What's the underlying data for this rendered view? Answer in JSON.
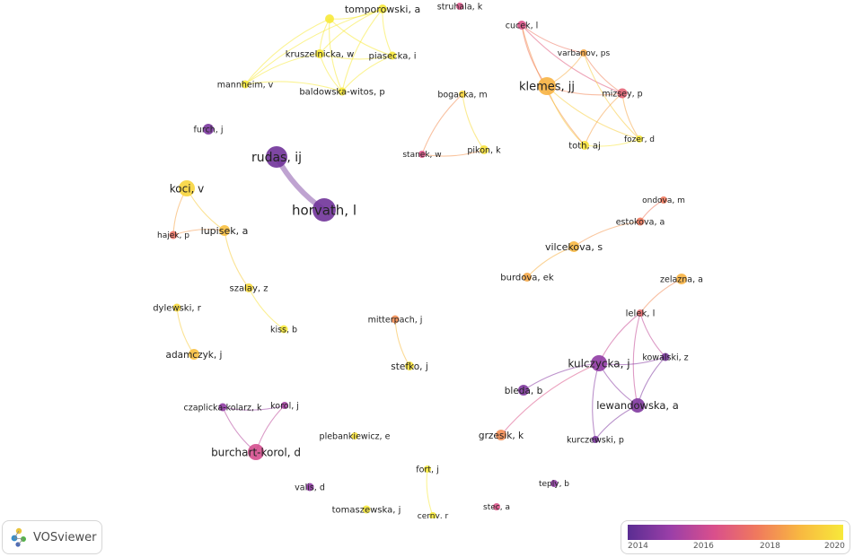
{
  "brand": {
    "name": "VOSviewer",
    "icon": "vosviewer-logo-icon"
  },
  "legend": {
    "ticks": [
      "2014",
      "2016",
      "2018",
      "2020"
    ],
    "colors": [
      "#5a2d92",
      "#9b3fa8",
      "#d94f8c",
      "#f0795d",
      "#f8b841",
      "#f7e93a"
    ]
  },
  "nodes": [
    {
      "id": "tomporowski",
      "label": "tomporowski, a",
      "year": 2020.0
    },
    {
      "id": "struhala",
      "label": "struhala, k",
      "year": 2016.5
    },
    {
      "id": "cucek",
      "label": "cucek, l",
      "year": 2016.5
    },
    {
      "id": "varbanov",
      "label": "varbanov, ps",
      "year": 2018.5
    },
    {
      "id": "kruszelnicka",
      "label": "kruszelnicka, w",
      "year": 2020.0
    },
    {
      "id": "piasecka",
      "label": "piasecka, i",
      "year": 2020.0
    },
    {
      "id": "klemes",
      "label": "klemes, jj",
      "year": 2018.7
    },
    {
      "id": "mannheim",
      "label": "mannheim, v",
      "year": 2020.0
    },
    {
      "id": "baldowska",
      "label": "baldowska-witos, p",
      "year": 2020.0
    },
    {
      "id": "bogacka",
      "label": "bogacka, m",
      "year": 2019.5
    },
    {
      "id": "mizsey",
      "label": "mizsey, p",
      "year": 2017.0
    },
    {
      "id": "furch",
      "label": "furch, j",
      "year": 2014.6
    },
    {
      "id": "toth",
      "label": "toth, aj",
      "year": 2019.8
    },
    {
      "id": "fozer",
      "label": "fozer, d",
      "year": 2020.0
    },
    {
      "id": "stanek",
      "label": "stanek, w",
      "year": 2016.5
    },
    {
      "id": "pikon",
      "label": "pikon, k",
      "year": 2019.8
    },
    {
      "id": "rudas",
      "label": "rudas, ij",
      "year": 2014.4
    },
    {
      "id": "koci",
      "label": "koci, v",
      "year": 2019.5
    },
    {
      "id": "horvath",
      "label": "horvath, l",
      "year": 2014.4
    },
    {
      "id": "ondova",
      "label": "ondova, m",
      "year": 2017.6
    },
    {
      "id": "estokova",
      "label": "estokova, a",
      "year": 2017.6
    },
    {
      "id": "lupisek",
      "label": "lupisek, a",
      "year": 2019.0
    },
    {
      "id": "hajek",
      "label": "hajek, p",
      "year": 2017.4
    },
    {
      "id": "vilcekova",
      "label": "vilcekova, s",
      "year": 2018.8
    },
    {
      "id": "burdova",
      "label": "burdova, ek",
      "year": 2018.5
    },
    {
      "id": "zelazna",
      "label": "zelazna, a",
      "year": 2018.7
    },
    {
      "id": "szalay",
      "label": "szalay, z",
      "year": 2019.6
    },
    {
      "id": "dylewski",
      "label": "dylewski, r",
      "year": 2019.6
    },
    {
      "id": "lelek",
      "label": "lelek, l",
      "year": 2017.2
    },
    {
      "id": "mitterpach",
      "label": "mitterpach, j",
      "year": 2018.0
    },
    {
      "id": "kiss",
      "label": "kiss, b",
      "year": 2020.0
    },
    {
      "id": "kowalski",
      "label": "kowalski, z",
      "year": 2014.6
    },
    {
      "id": "adamczyk",
      "label": "adamczyk, j",
      "year": 2019.0
    },
    {
      "id": "kulczycka",
      "label": "kulczycka, j",
      "year": 2015.0
    },
    {
      "id": "stefko",
      "label": "stefko, j",
      "year": 2019.8
    },
    {
      "id": "bleda",
      "label": "bleda, b",
      "year": 2014.7
    },
    {
      "id": "lewandowska",
      "label": "lewandowska, a",
      "year": 2014.7
    },
    {
      "id": "czaplicka",
      "label": "czaplicka-kolarz, k",
      "year": 2015.0
    },
    {
      "id": "korol",
      "label": "korol, j",
      "year": 2015.4
    },
    {
      "id": "grzesik",
      "label": "grzesik, k",
      "year": 2018.0
    },
    {
      "id": "plebankiewicz",
      "label": "plebankiewicz, e",
      "year": 2019.8
    },
    {
      "id": "kurczewski",
      "label": "kurczewski, p",
      "year": 2014.6
    },
    {
      "id": "burchart",
      "label": "burchart-korol, d",
      "year": 2016.3
    },
    {
      "id": "fort",
      "label": "fort, j",
      "year": 2020.0
    },
    {
      "id": "teply",
      "label": "teply, b",
      "year": 2015.0
    },
    {
      "id": "valis",
      "label": "valis, d",
      "year": 2015.0
    },
    {
      "id": "stec",
      "label": "stec, a",
      "year": 2016.5
    },
    {
      "id": "tomaszewska",
      "label": "tomaszewska, j",
      "year": 2020.0
    },
    {
      "id": "cerny",
      "label": "cerny, r",
      "year": 2020.0
    },
    {
      "id": "ghost1",
      "label": "",
      "year": 2020.0
    }
  ],
  "links": [
    [
      "ghost1",
      "tomporowski"
    ],
    [
      "ghost1",
      "kruszelnicka"
    ],
    [
      "ghost1",
      "piasecka"
    ],
    [
      "ghost1",
      "baldowska"
    ],
    [
      "ghost1",
      "mannheim"
    ],
    [
      "tomporowski",
      "kruszelnicka"
    ],
    [
      "tomporowski",
      "piasecka"
    ],
    [
      "tomporowski",
      "baldowska"
    ],
    [
      "tomporowski",
      "mannheim"
    ],
    [
      "kruszelnicka",
      "piasecka"
    ],
    [
      "kruszelnicka",
      "baldowska"
    ],
    [
      "kruszelnicka",
      "mannheim"
    ],
    [
      "piasecka",
      "baldowska"
    ],
    [
      "baldowska",
      "mannheim"
    ],
    [
      "cucek",
      "klemes"
    ],
    [
      "cucek",
      "varbanov"
    ],
    [
      "cucek",
      "mizsey"
    ],
    [
      "cucek",
      "toth"
    ],
    [
      "klemes",
      "varbanov"
    ],
    [
      "klemes",
      "mizsey"
    ],
    [
      "klemes",
      "toth"
    ],
    [
      "klemes",
      "fozer"
    ],
    [
      "varbanov",
      "mizsey"
    ],
    [
      "varbanov",
      "fozer"
    ],
    [
      "mizsey",
      "toth"
    ],
    [
      "mizsey",
      "fozer"
    ],
    [
      "toth",
      "fozer"
    ],
    [
      "bogacka",
      "stanek"
    ],
    [
      "bogacka",
      "pikon"
    ],
    [
      "stanek",
      "pikon"
    ],
    [
      "rudas",
      "horvath"
    ],
    [
      "koci",
      "lupisek"
    ],
    [
      "koci",
      "hajek"
    ],
    [
      "lupisek",
      "hajek"
    ],
    [
      "lupisek",
      "szalay"
    ],
    [
      "szalay",
      "kiss"
    ],
    [
      "dylewski",
      "adamczyk"
    ],
    [
      "ondova",
      "estokova"
    ],
    [
      "estokova",
      "vilcekova"
    ],
    [
      "vilcekova",
      "burdova"
    ],
    [
      "mitterpach",
      "stefko"
    ],
    [
      "zelazna",
      "lelek"
    ],
    [
      "lelek",
      "kulczycka"
    ],
    [
      "lelek",
      "kowalski"
    ],
    [
      "lelek",
      "lewandowska"
    ],
    [
      "kulczycka",
      "kowalski"
    ],
    [
      "kulczycka",
      "lewandowska"
    ],
    [
      "kulczycka",
      "bleda"
    ],
    [
      "kulczycka",
      "grzesik"
    ],
    [
      "kulczycka",
      "kurczewski"
    ],
    [
      "lewandowska",
      "kurczewski"
    ],
    [
      "kowalski",
      "lewandowska"
    ],
    [
      "czaplicka",
      "korol"
    ],
    [
      "czaplicka",
      "burchart"
    ],
    [
      "korol",
      "burchart"
    ],
    [
      "fort",
      "cerny"
    ]
  ]
}
